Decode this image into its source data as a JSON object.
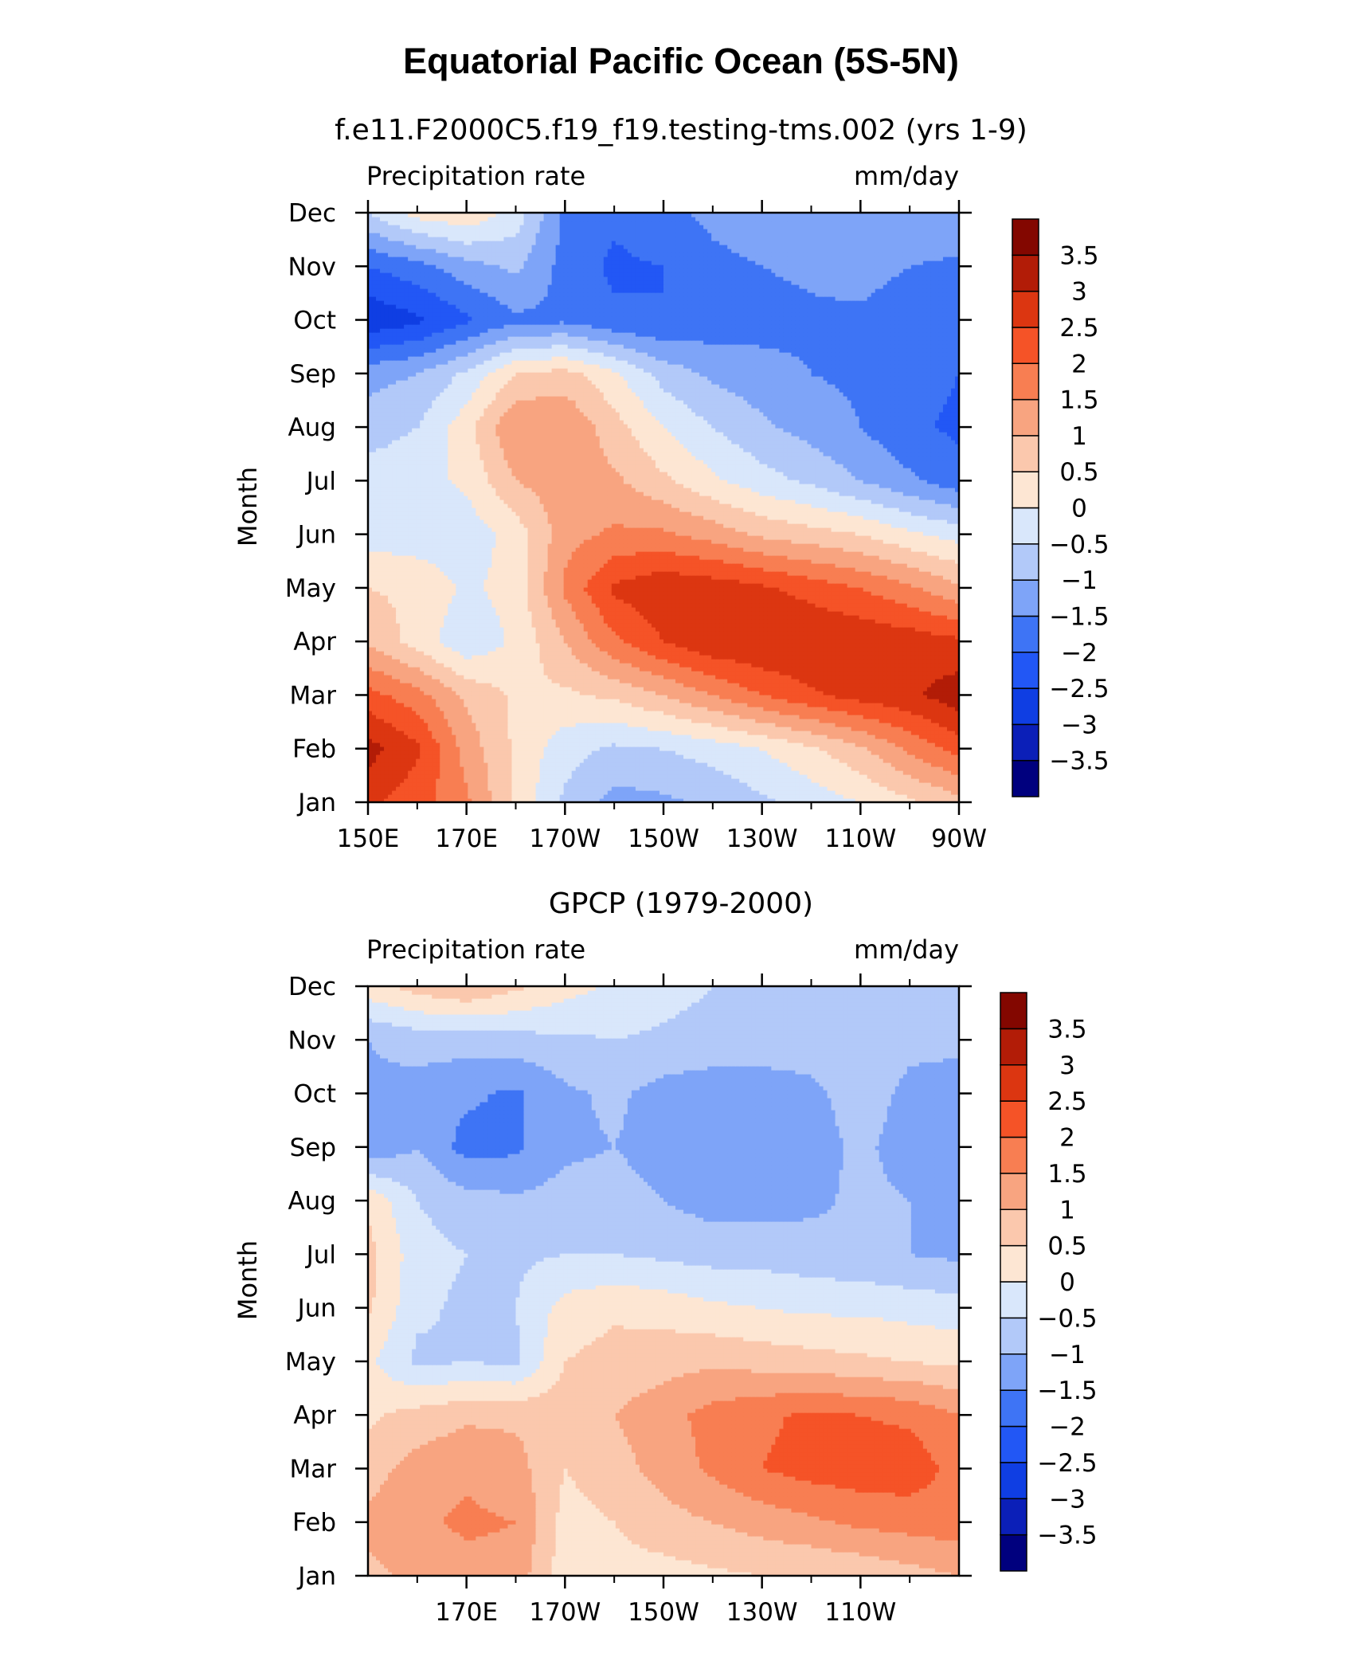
{
  "figure": {
    "title": "Equatorial Pacific Ocean (5S-5N)"
  },
  "chart_data": [
    {
      "type": "heatmap",
      "title": "f.e11.F2000C5.f19_f19.testing-tms.002 (yrs 1-9)",
      "left_label": "Precipitation rate",
      "right_label": "mm/day",
      "ylabel": "Month",
      "xlabel": "",
      "x_ticks": [
        "150E",
        "170E",
        "170W",
        "150W",
        "130W",
        "110W",
        "90W"
      ],
      "x_range": [
        150,
        270
      ],
      "y_ticks": [
        "Jan",
        "Feb",
        "Mar",
        "Apr",
        "May",
        "Jun",
        "Jul",
        "Aug",
        "Sep",
        "Oct",
        "Nov",
        "Dec"
      ],
      "x": [
        150,
        160,
        170,
        180,
        190,
        200,
        210,
        220,
        230,
        240,
        250,
        260,
        270
      ],
      "z": [
        [
          2.6,
          2.2,
          1.6,
          0.4,
          -0.6,
          -1.2,
          -1.1,
          -0.9,
          -0.6,
          -0.3,
          0.0,
          0.4,
          0.8
        ],
        [
          3.2,
          2.6,
          1.3,
          0.4,
          -0.3,
          -0.6,
          -0.5,
          -0.3,
          0.0,
          0.4,
          0.9,
          1.6,
          2.2
        ],
        [
          2.2,
          1.7,
          0.9,
          0.4,
          0.4,
          0.6,
          1.0,
          1.5,
          2.0,
          2.4,
          2.7,
          2.9,
          3.3
        ],
        [
          0.9,
          0.3,
          -0.4,
          0.1,
          1.0,
          1.9,
          2.5,
          2.9,
          3.0,
          3.0,
          2.9,
          2.8,
          2.6
        ],
        [
          0.5,
          0.4,
          -0.1,
          0.2,
          1.6,
          2.6,
          2.9,
          2.8,
          2.6,
          2.3,
          2.0,
          1.6,
          1.1
        ],
        [
          -0.2,
          -0.3,
          -0.3,
          0.2,
          1.3,
          1.6,
          1.6,
          1.3,
          0.9,
          0.7,
          0.5,
          0.1,
          -0.2
        ],
        [
          -0.3,
          -0.2,
          0.1,
          1.0,
          1.3,
          1.1,
          0.6,
          0.1,
          -0.3,
          -0.6,
          -1.0,
          -1.4,
          -1.8
        ],
        [
          -0.7,
          -0.5,
          0.3,
          1.5,
          1.5,
          0.7,
          0.0,
          -0.5,
          -0.9,
          -1.2,
          -1.5,
          -1.9,
          -2.1
        ],
        [
          -1.2,
          -1.0,
          -0.4,
          0.5,
          0.7,
          0.1,
          -0.7,
          -1.1,
          -1.3,
          -1.5,
          -1.6,
          -1.8,
          -2.0
        ],
        [
          -2.9,
          -2.6,
          -2.1,
          -1.6,
          -1.6,
          -1.9,
          -2.0,
          -1.8,
          -1.7,
          -1.6,
          -1.6,
          -1.8,
          -1.9
        ],
        [
          -2.0,
          -1.7,
          -1.2,
          -0.9,
          -1.7,
          -2.1,
          -2.0,
          -1.6,
          -1.5,
          -1.4,
          -1.3,
          -1.5,
          -1.6
        ],
        [
          -0.5,
          0.2,
          0.4,
          -0.2,
          -1.6,
          -1.9,
          -1.6,
          -1.4,
          -1.3,
          -1.3,
          -1.3,
          -1.1,
          -1.1
        ]
      ],
      "levels": [
        -3.5,
        -3,
        -2.5,
        -2,
        -1.5,
        -1,
        -0.5,
        0,
        0.5,
        1,
        1.5,
        2,
        2.5,
        3,
        3.5
      ],
      "colorbar_labels": [
        "3.5",
        "3",
        "2.5",
        "2",
        "1.5",
        "1",
        "0.5",
        "0",
        "−0.5",
        "−1",
        "−1.5",
        "−2",
        "−2.5",
        "−3",
        "−3.5"
      ]
    },
    {
      "type": "heatmap",
      "title": "GPCP (1979-2000)",
      "left_label": "Precipitation rate",
      "right_label": "mm/day",
      "ylabel": "Month",
      "xlabel": "",
      "x_ticks": [
        "170E",
        "170W",
        "150W",
        "130W",
        "110W"
      ],
      "x_range": [
        150,
        270
      ],
      "y_ticks": [
        "Jan",
        "Feb",
        "Mar",
        "Apr",
        "May",
        "Jun",
        "Jul",
        "Aug",
        "Sep",
        "Oct",
        "Nov",
        "Dec"
      ],
      "x": [
        150,
        160,
        170,
        180,
        190,
        200,
        210,
        220,
        230,
        240,
        250,
        260,
        270
      ],
      "z": [
        [
          0.9,
          1.1,
          1.3,
          1.3,
          0.2,
          0.3,
          0.3,
          0.4,
          0.5,
          0.5,
          0.6,
          0.8,
          1.0
        ],
        [
          1.1,
          1.4,
          1.6,
          1.5,
          0.3,
          0.5,
          0.8,
          1.0,
          1.2,
          1.4,
          1.6,
          1.7,
          1.8
        ],
        [
          0.8,
          1.2,
          1.4,
          1.2,
          0.5,
          0.8,
          1.2,
          1.6,
          2.0,
          2.2,
          2.3,
          2.3,
          1.8
        ],
        [
          0.4,
          0.7,
          0.9,
          0.9,
          0.8,
          1.0,
          1.3,
          1.7,
          1.9,
          2.1,
          2.0,
          1.9,
          1.5
        ],
        [
          0.1,
          -0.6,
          -0.5,
          -0.6,
          0.5,
          0.7,
          0.8,
          0.9,
          0.8,
          0.7,
          0.6,
          0.5,
          0.4
        ],
        [
          0.6,
          -0.4,
          -0.6,
          -0.5,
          0.2,
          0.4,
          0.3,
          0.1,
          0.0,
          -0.1,
          -0.1,
          -0.2,
          -0.3
        ],
        [
          0.7,
          -0.3,
          -0.5,
          -0.6,
          -0.5,
          -0.5,
          -0.6,
          -0.7,
          -0.7,
          -0.8,
          -0.9,
          -1.0,
          -1.1
        ],
        [
          0.4,
          -0.5,
          -0.8,
          -0.9,
          -0.8,
          -0.8,
          -1.0,
          -1.2,
          -1.2,
          -1.1,
          -0.9,
          -1.0,
          -1.2
        ],
        [
          -1.4,
          -1.0,
          -1.7,
          -1.6,
          -1.1,
          -1.0,
          -1.2,
          -1.3,
          -1.3,
          -1.2,
          -0.9,
          -1.2,
          -1.3
        ],
        [
          -1.1,
          -1.2,
          -1.4,
          -1.6,
          -1.1,
          -0.9,
          -1.2,
          -1.3,
          -1.2,
          -1.1,
          -0.8,
          -1.1,
          -1.2
        ],
        [
          -1.0,
          -0.8,
          -0.8,
          -0.7,
          -0.6,
          -0.5,
          -0.6,
          -0.7,
          -0.8,
          -0.8,
          -0.8,
          -0.9,
          -0.9
        ],
        [
          0.3,
          0.7,
          1.0,
          0.6,
          0.2,
          -0.1,
          -0.3,
          -0.5,
          -0.6,
          -0.7,
          -0.8,
          -0.8,
          -0.8
        ]
      ],
      "levels": [
        -3.5,
        -3,
        -2.5,
        -2,
        -1.5,
        -1,
        -0.5,
        0,
        0.5,
        1,
        1.5,
        2,
        2.5,
        3,
        3.5
      ],
      "colorbar_labels": [
        "3.5",
        "3",
        "2.5",
        "2",
        "1.5",
        "1",
        "0.5",
        "0",
        "−0.5",
        "−1",
        "−1.5",
        "−2",
        "−2.5",
        "−3",
        "−3.5"
      ]
    }
  ],
  "palette": [
    "#00007e",
    "#0b1fb8",
    "#0f3ee3",
    "#2257f5",
    "#3e74f5",
    "#7ea4f8",
    "#b2c9f9",
    "#d9e7fb",
    "#fde6d3",
    "#fbc8ad",
    "#f8a480",
    "#f87e52",
    "#f55327",
    "#dc3611",
    "#b21c07",
    "#830700"
  ]
}
